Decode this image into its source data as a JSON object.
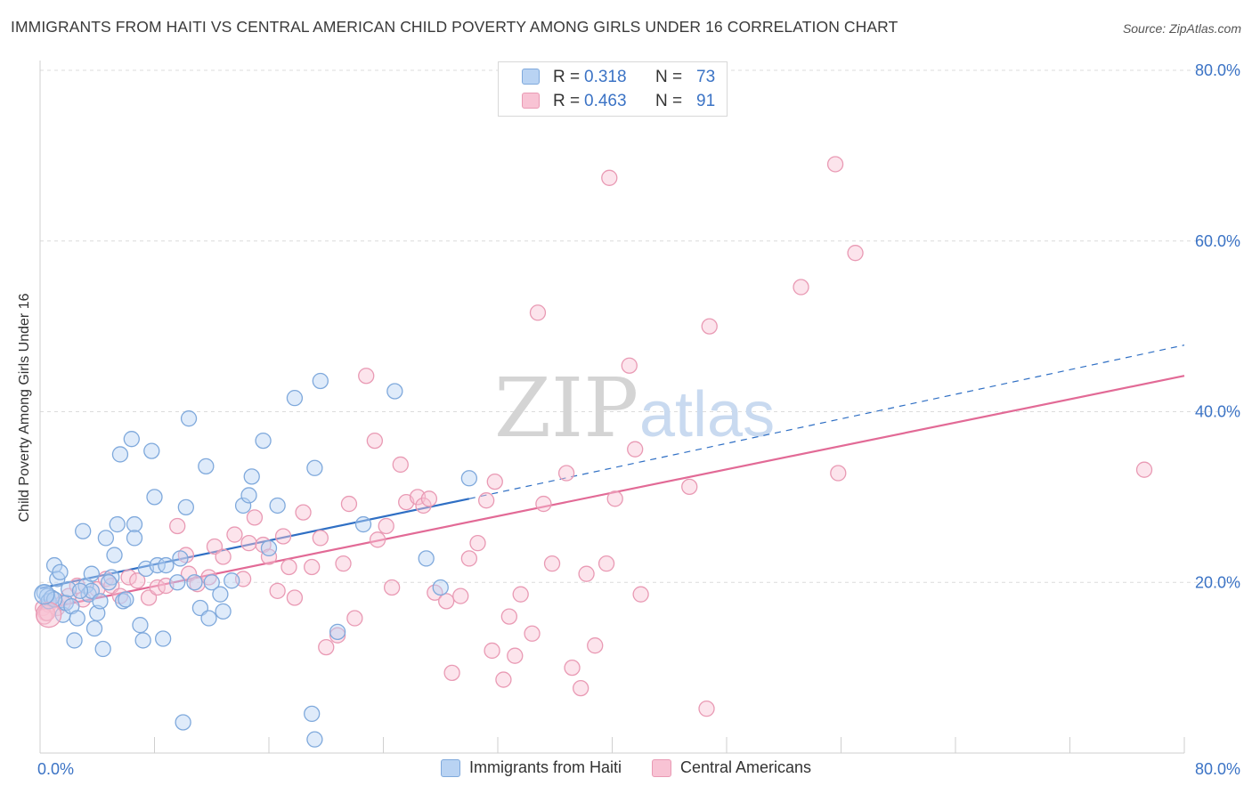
{
  "title": "IMMIGRANTS FROM HAITI VS CENTRAL AMERICAN CHILD POVERTY AMONG GIRLS UNDER 16 CORRELATION CHART",
  "source": "Source: ZipAtlas.com",
  "watermark": {
    "zip": "ZIP",
    "atlas": "atlas"
  },
  "legend_top": [
    {
      "r_label": "R =",
      "r_value": "0.318",
      "n_label": "N =",
      "n_value": "73",
      "color": "#b9d3f3"
    },
    {
      "r_label": "R =",
      "r_value": "0.463",
      "n_label": "N =",
      "n_value": "91",
      "color": "#f8c3d4"
    }
  ],
  "legend_bottom": [
    {
      "label": "Immigrants from Haiti",
      "color": "#b9d3f3"
    },
    {
      "label": "Central Americans",
      "color": "#f8c3d4"
    }
  ],
  "chart_data": {
    "type": "scatter",
    "title": "IMMIGRANTS FROM HAITI VS CENTRAL AMERICAN CHILD POVERTY AMONG GIRLS UNDER 16 CORRELATION CHART",
    "xlabel": "",
    "ylabel": "Child Poverty Among Girls Under 16",
    "xlim": [
      0,
      80
    ],
    "ylim": [
      0,
      80
    ],
    "x_tick_labels": [
      "0.0%",
      "80.0%"
    ],
    "y_tick_labels": [
      "20.0%",
      "40.0%",
      "60.0%",
      "80.0%"
    ],
    "y_ticks": [
      20,
      40,
      60,
      80
    ],
    "grid": true,
    "legend_position": "top-center",
    "series": [
      {
        "name": "Immigrants from Haiti",
        "color": "#7fa9dc",
        "fill": "#b9d3f3",
        "trend": {
          "x0": 0,
          "y0": 19.3,
          "x1": 30,
          "y1": 29.8,
          "dashed_to_x": 80,
          "dashed_to_y": 47.8,
          "color": "#2f6fc4"
        },
        "points": [
          [
            0.3,
            18.8
          ],
          [
            0.5,
            18.4
          ],
          [
            0.6,
            17.8
          ],
          [
            0.8,
            18.2
          ],
          [
            1.0,
            22.0
          ],
          [
            1.2,
            20.4
          ],
          [
            1.4,
            21.2
          ],
          [
            1.6,
            16.2
          ],
          [
            1.8,
            17.6
          ],
          [
            2.0,
            19.2
          ],
          [
            2.2,
            17.2
          ],
          [
            2.4,
            13.2
          ],
          [
            2.6,
            15.8
          ],
          [
            3.0,
            26.0
          ],
          [
            3.2,
            19.6
          ],
          [
            3.4,
            18.6
          ],
          [
            3.6,
            19.0
          ],
          [
            3.8,
            14.6
          ],
          [
            4.0,
            16.4
          ],
          [
            4.2,
            17.8
          ],
          [
            4.4,
            12.2
          ],
          [
            4.6,
            25.2
          ],
          [
            5.0,
            20.6
          ],
          [
            5.2,
            23.2
          ],
          [
            5.4,
            26.8
          ],
          [
            5.6,
            35.0
          ],
          [
            5.8,
            17.8
          ],
          [
            6.0,
            18.0
          ],
          [
            6.4,
            36.8
          ],
          [
            6.6,
            26.8
          ],
          [
            7.0,
            15.0
          ],
          [
            7.2,
            13.2
          ],
          [
            7.4,
            21.6
          ],
          [
            7.8,
            35.4
          ],
          [
            8.0,
            30.0
          ],
          [
            8.2,
            22.0
          ],
          [
            8.6,
            13.4
          ],
          [
            8.8,
            22.0
          ],
          [
            9.6,
            20.0
          ],
          [
            9.8,
            22.8
          ],
          [
            10.2,
            28.8
          ],
          [
            10.4,
            39.2
          ],
          [
            10.8,
            20.0
          ],
          [
            11.2,
            17.0
          ],
          [
            11.6,
            33.6
          ],
          [
            11.8,
            15.8
          ],
          [
            12.0,
            20.0
          ],
          [
            12.6,
            18.6
          ],
          [
            12.8,
            16.6
          ],
          [
            13.4,
            20.2
          ],
          [
            14.2,
            29.0
          ],
          [
            14.6,
            30.2
          ],
          [
            14.8,
            32.4
          ],
          [
            15.6,
            36.6
          ],
          [
            16.0,
            24.0
          ],
          [
            16.6,
            29.0
          ],
          [
            17.8,
            41.6
          ],
          [
            19.2,
            33.4
          ],
          [
            19.6,
            43.6
          ],
          [
            20.8,
            14.2
          ],
          [
            22.6,
            26.8
          ],
          [
            24.8,
            42.4
          ],
          [
            27.0,
            22.8
          ],
          [
            28.0,
            19.4
          ],
          [
            30.0,
            32.2
          ],
          [
            10.0,
            3.6
          ],
          [
            19.0,
            4.6
          ],
          [
            19.2,
            1.6
          ],
          [
            6.6,
            25.2
          ],
          [
            3.6,
            21.0
          ],
          [
            1.0,
            18.0
          ],
          [
            2.8,
            19.0
          ],
          [
            4.8,
            20.0
          ]
        ]
      },
      {
        "name": "Central Americans",
        "color": "#e99ab4",
        "fill": "#f8c3d4",
        "trend": {
          "x0": 0,
          "y0": 16.8,
          "x1": 80,
          "y1": 44.2,
          "color": "#e26a96"
        },
        "points": [
          [
            0.2,
            17.0
          ],
          [
            0.4,
            16.4
          ],
          [
            0.6,
            17.4
          ],
          [
            0.8,
            18.2
          ],
          [
            1.2,
            17.0
          ],
          [
            2.0,
            18.4
          ],
          [
            2.6,
            19.6
          ],
          [
            3.0,
            18.0
          ],
          [
            4.0,
            19.2
          ],
          [
            4.6,
            20.4
          ],
          [
            5.0,
            19.6
          ],
          [
            5.6,
            18.4
          ],
          [
            6.2,
            20.6
          ],
          [
            6.8,
            20.2
          ],
          [
            7.6,
            18.2
          ],
          [
            8.2,
            19.4
          ],
          [
            8.8,
            19.6
          ],
          [
            9.6,
            26.6
          ],
          [
            10.2,
            23.2
          ],
          [
            10.4,
            21.0
          ],
          [
            11.0,
            19.8
          ],
          [
            11.8,
            20.6
          ],
          [
            12.2,
            24.2
          ],
          [
            12.8,
            23.0
          ],
          [
            13.6,
            25.6
          ],
          [
            14.2,
            20.4
          ],
          [
            14.6,
            24.6
          ],
          [
            15.0,
            27.6
          ],
          [
            15.6,
            24.4
          ],
          [
            16.0,
            23.0
          ],
          [
            16.6,
            19.0
          ],
          [
            17.0,
            25.4
          ],
          [
            17.4,
            21.8
          ],
          [
            17.8,
            18.2
          ],
          [
            18.4,
            28.2
          ],
          [
            19.0,
            21.8
          ],
          [
            19.6,
            25.2
          ],
          [
            20.0,
            12.4
          ],
          [
            20.8,
            13.8
          ],
          [
            21.2,
            22.2
          ],
          [
            21.6,
            29.2
          ],
          [
            22.0,
            15.8
          ],
          [
            22.8,
            44.2
          ],
          [
            23.4,
            36.6
          ],
          [
            23.6,
            25.0
          ],
          [
            24.2,
            26.6
          ],
          [
            24.6,
            19.4
          ],
          [
            25.2,
            33.8
          ],
          [
            25.6,
            29.4
          ],
          [
            26.4,
            30.0
          ],
          [
            26.8,
            29.0
          ],
          [
            27.2,
            29.8
          ],
          [
            27.6,
            18.8
          ],
          [
            28.4,
            17.8
          ],
          [
            28.8,
            9.4
          ],
          [
            29.4,
            18.4
          ],
          [
            30.0,
            22.8
          ],
          [
            30.6,
            24.6
          ],
          [
            31.2,
            29.6
          ],
          [
            31.6,
            12.0
          ],
          [
            31.8,
            31.8
          ],
          [
            32.4,
            8.6
          ],
          [
            32.8,
            16.0
          ],
          [
            33.2,
            11.4
          ],
          [
            33.6,
            18.6
          ],
          [
            34.4,
            14.0
          ],
          [
            34.8,
            51.6
          ],
          [
            35.2,
            29.2
          ],
          [
            35.8,
            22.2
          ],
          [
            36.8,
            32.8
          ],
          [
            37.2,
            10.0
          ],
          [
            37.8,
            7.6
          ],
          [
            38.2,
            21.0
          ],
          [
            38.8,
            12.6
          ],
          [
            39.6,
            22.2
          ],
          [
            39.8,
            67.4
          ],
          [
            40.2,
            29.8
          ],
          [
            41.2,
            45.4
          ],
          [
            41.6,
            35.6
          ],
          [
            42.0,
            18.6
          ],
          [
            45.4,
            31.2
          ],
          [
            46.6,
            5.2
          ],
          [
            46.8,
            50.0
          ],
          [
            53.2,
            54.6
          ],
          [
            55.6,
            69.0
          ],
          [
            55.8,
            32.8
          ],
          [
            57.0,
            58.6
          ],
          [
            77.2,
            33.2
          ],
          [
            0.3,
            16.0
          ],
          [
            0.5,
            16.4
          ],
          [
            1.6,
            17.6
          ]
        ]
      }
    ]
  }
}
